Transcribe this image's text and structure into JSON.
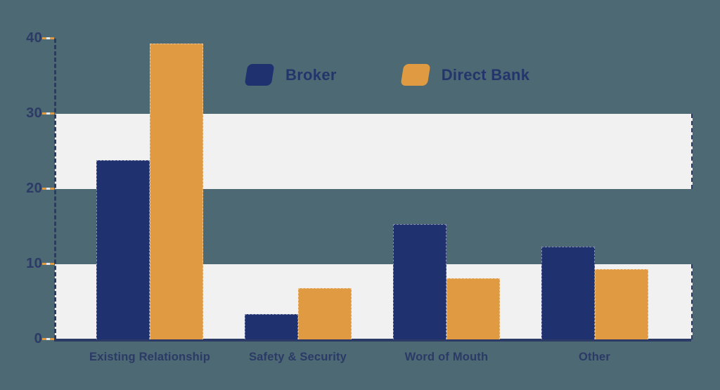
{
  "page": {
    "background_color": "#4d6973",
    "band_color": "#f2f1f2",
    "axis_color": "#2c3a66",
    "tick_dash_color": "#df9a42",
    "text_color": "#2b3a66"
  },
  "legend": {
    "items": [
      {
        "label": "Broker",
        "color": "#20316f"
      },
      {
        "label": "Direct Bank",
        "color": "#df9a42"
      }
    ]
  },
  "chart_data": {
    "type": "bar",
    "title": "",
    "xlabel": "",
    "ylabel": "",
    "categories": [
      "Existing Relationship",
      "Safety & Security",
      "Word of Mouth",
      "Other"
    ],
    "series": [
      {
        "name": "Broker",
        "color": "#20316f",
        "values": [
          23.8,
          3.4,
          15.3,
          12.3
        ]
      },
      {
        "name": "Direct Bank",
        "color": "#df9a42",
        "values": [
          39.3,
          6.8,
          8.1,
          9.3
        ]
      }
    ],
    "yticks": [
      0,
      10,
      20,
      30,
      40
    ],
    "ylim": [
      0,
      40
    ],
    "grid": false,
    "background_bands": [
      [
        20,
        30
      ],
      [
        0,
        10
      ]
    ],
    "legend_position": "top-center"
  }
}
